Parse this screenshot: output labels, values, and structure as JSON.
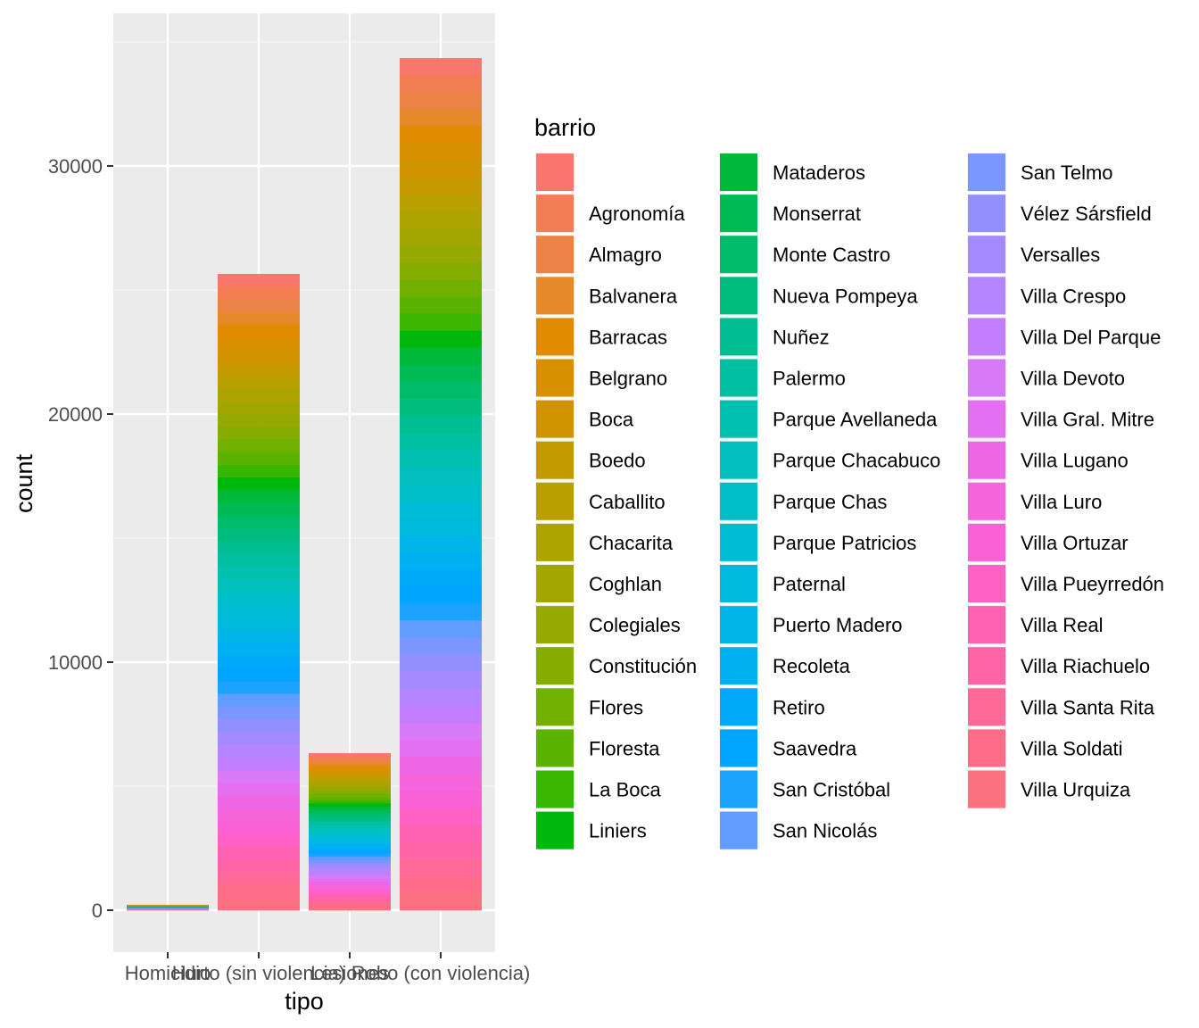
{
  "chart_data": {
    "type": "bar",
    "stacked": true,
    "title": "",
    "xlabel": "tipo",
    "ylabel": "count",
    "ylim": [
      -1700,
      35800
    ],
    "yticks": [
      0,
      10000,
      20000,
      30000
    ],
    "ytick_labels": [
      "0",
      "10000",
      "20000",
      "30000"
    ],
    "categories": [
      "Homicidio",
      "Hurto (sin violencia)",
      "Lesiones",
      "Robo (con violencia)"
    ],
    "totals": [
      220,
      25650,
      6330,
      34350
    ],
    "grid": true,
    "legend": {
      "title": "barrio",
      "placement": "right",
      "entries": [
        {
          "label": "",
          "color": "#F8766D"
        },
        {
          "label": "Agronomía",
          "color": "#F27D52"
        },
        {
          "label": "Almagro",
          "color": "#EC8346"
        },
        {
          "label": "Balvanera",
          "color": "#E6892A"
        },
        {
          "label": "Barracas",
          "color": "#E08B00"
        },
        {
          "label": "Belgrano",
          "color": "#D89000"
        },
        {
          "label": "Boca",
          "color": "#CF9400"
        },
        {
          "label": "Boedo",
          "color": "#C49A00"
        },
        {
          "label": "Caballito",
          "color": "#B9A000"
        },
        {
          "label": "Chacarita",
          "color": "#AEA400"
        },
        {
          "label": "Coghlan",
          "color": "#A3A500"
        },
        {
          "label": "Colegiales",
          "color": "#95A900"
        },
        {
          "label": "Constitución",
          "color": "#85AD00"
        },
        {
          "label": "Flores",
          "color": "#72B000"
        },
        {
          "label": "Floresta",
          "color": "#5BB300"
        },
        {
          "label": "La Boca",
          "color": "#39B600"
        },
        {
          "label": "Liniers",
          "color": "#00B70C"
        },
        {
          "label": "Mataderos",
          "color": "#00B93A"
        },
        {
          "label": "Monserrat",
          "color": "#00BA54"
        },
        {
          "label": "Monte Castro",
          "color": "#00BC6B"
        },
        {
          "label": "Nueva Pompeya",
          "color": "#00BD7E"
        },
        {
          "label": "Nuñez",
          "color": "#00BE91"
        },
        {
          "label": "Palermo",
          "color": "#00C0A1"
        },
        {
          "label": "Parque Avellaneda",
          "color": "#00C0AF"
        },
        {
          "label": "Parque Chacabuco",
          "color": "#00BFBC"
        },
        {
          "label": "Parque Chas",
          "color": "#00BEC8"
        },
        {
          "label": "Parque Patricios",
          "color": "#00BCD4"
        },
        {
          "label": "Paternal",
          "color": "#00BADE"
        },
        {
          "label": "Puerto Madero",
          "color": "#00B6E8"
        },
        {
          "label": "Recoleta",
          "color": "#00B0F0"
        },
        {
          "label": "Retiro",
          "color": "#00A9FA"
        },
        {
          "label": "Saavedra",
          "color": "#00A5FF"
        },
        {
          "label": "San Cristóbal",
          "color": "#1CA2FF"
        },
        {
          "label": "San Nicolás",
          "color": "#619CFF"
        },
        {
          "label": "San Telmo",
          "color": "#7C96FF"
        },
        {
          "label": "Vélez Sársfield",
          "color": "#938FFF"
        },
        {
          "label": "Versalles",
          "color": "#A58AFF"
        },
        {
          "label": "Villa Crespo",
          "color": "#B584FF"
        },
        {
          "label": "Villa Del Parque",
          "color": "#C37EFF"
        },
        {
          "label": "Villa Devoto",
          "color": "#D77AF7"
        },
        {
          "label": "Villa Gral. Mitre",
          "color": "#E46FF0"
        },
        {
          "label": "Villa Lugano",
          "color": "#EE67E6"
        },
        {
          "label": "Villa Luro",
          "color": "#F665DB"
        },
        {
          "label": "Villa Ortuzar",
          "color": "#FB61D7"
        },
        {
          "label": "Villa Pueyrredón",
          "color": "#FF62C4"
        },
        {
          "label": "Villa Real",
          "color": "#FF62B2"
        },
        {
          "label": "Villa Riachuelo",
          "color": "#FF65A6"
        },
        {
          "label": "Villa Santa Rita",
          "color": "#FF6897"
        },
        {
          "label": "Villa Soldati",
          "color": "#FF6C88"
        },
        {
          "label": "Villa Urquiza",
          "color": "#FC717F"
        }
      ]
    }
  },
  "style": {
    "panel_background": "#EBEBEB",
    "grid_major": "#FFFFFF",
    "grid_minor": "#F5F5F5",
    "axis_tick_color": "#333333",
    "tick_label_color": "#4D4D4D"
  }
}
